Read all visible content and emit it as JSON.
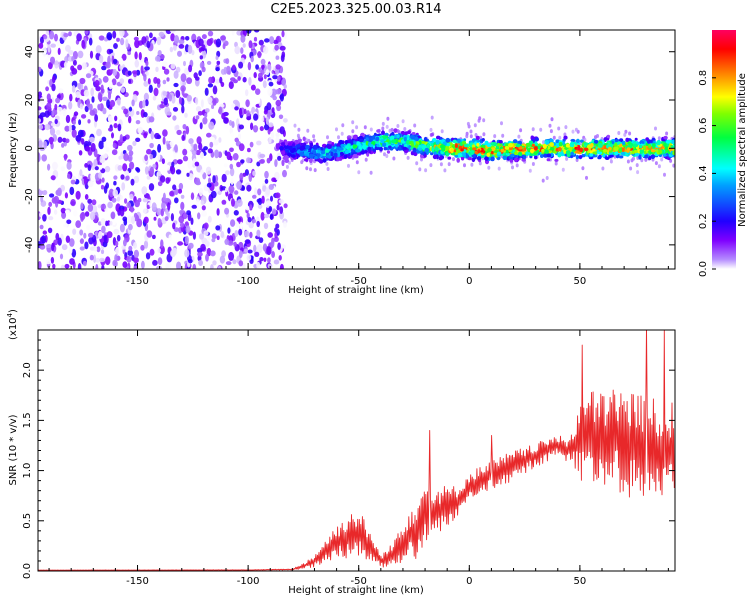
{
  "title": "C2E5.2023.325.00.03.R14",
  "chart_data": [
    {
      "type": "heatmap",
      "xlabel": "Height of straight line (km)",
      "ylabel": "Frequency (Hz)",
      "xlim": [
        -195,
        93
      ],
      "ylim": [
        -50,
        49
      ],
      "xticks": [
        -150,
        -100,
        -50,
        0,
        50
      ],
      "yticks": [
        -40,
        -20,
        0,
        20,
        40
      ],
      "noise_region_x": [
        -195,
        -83
      ],
      "signal_band": {
        "x": [
          -85,
          -80,
          -75,
          -70,
          -65,
          -60,
          -55,
          -50,
          -45,
          -40,
          -35,
          -30,
          -25,
          -20,
          -15,
          -10,
          -5,
          0,
          5,
          10,
          20,
          30,
          40,
          50,
          60,
          70,
          80,
          90
        ],
        "center_hz": [
          0,
          -1,
          -1,
          -2,
          -2,
          -1,
          0,
          1,
          2,
          3,
          3,
          3,
          2,
          1,
          0.5,
          0,
          0,
          0,
          -0.5,
          -1,
          -0.5,
          0,
          0,
          0,
          0,
          0,
          0,
          0
        ],
        "peak_amplitude": [
          0.2,
          0.3,
          0.35,
          0.4,
          0.45,
          0.45,
          0.5,
          0.55,
          0.55,
          0.6,
          0.6,
          0.6,
          0.65,
          0.7,
          0.75,
          0.85,
          0.9,
          0.9,
          0.95,
          0.95,
          0.9,
          0.9,
          0.85,
          0.9,
          0.85,
          0.85,
          0.8,
          0.8
        ]
      },
      "colorbar": {
        "label": "Normalized spectral amplitude",
        "range": [
          0,
          1
        ],
        "ticks": [
          "0.0",
          "0.2",
          "0.4",
          "0.6",
          "0.8"
        ],
        "colors": [
          "#ffffff",
          "#7f00ff",
          "#0000ff",
          "#00ffff",
          "#00ff00",
          "#ffff00",
          "#ff8000",
          "#ff0000",
          "#ff0080"
        ]
      }
    },
    {
      "type": "line",
      "xlabel": "Height of straight line (km)",
      "ylabel": "SNR (10 * v/v)",
      "y_multiplier": "(x10",
      "y_multiplier_exp": "4",
      "xlim": [
        -195,
        93
      ],
      "ylim": [
        0,
        24000
      ],
      "xticks": [
        -150,
        -100,
        -50,
        0,
        50
      ],
      "yticks": [
        0,
        5000,
        10000,
        15000,
        20000
      ],
      "ytick_labels": [
        "0.0",
        "0.5",
        "1.0",
        "1.5",
        "2.0"
      ],
      "color": "#e8282a",
      "x": [
        -195,
        -100,
        -80,
        -75,
        -70,
        -65,
        -60,
        -55,
        -50,
        -45,
        -40,
        -35,
        -30,
        -25,
        -20,
        -15,
        -10,
        -5,
        0,
        5,
        10,
        15,
        20,
        25,
        30,
        35,
        40,
        45,
        50,
        55,
        60,
        65,
        70,
        75,
        80,
        85,
        90,
        93
      ],
      "y": [
        80,
        100,
        150,
        500,
        1000,
        2000,
        2800,
        3500,
        3800,
        2500,
        1000,
        1500,
        3000,
        4000,
        5500,
        6000,
        6500,
        7000,
        8500,
        9000,
        9500,
        10000,
        10500,
        11000,
        11500,
        12000,
        12500,
        12000,
        13000,
        13500,
        13000,
        13500,
        13000,
        12500,
        12500,
        12000,
        12000,
        12500
      ],
      "noise_amplitude": [
        20,
        20,
        60,
        300,
        600,
        1200,
        1800,
        2200,
        2500,
        1500,
        600,
        1200,
        2500,
        3000,
        3500,
        2500,
        2000,
        1500,
        1200,
        1500,
        1500,
        1500,
        1500,
        1300,
        1200,
        1200,
        1000,
        1200,
        4000,
        4500,
        5000,
        5000,
        5500,
        5500,
        5000,
        5000,
        4500,
        4500
      ],
      "spikes": [
        {
          "x": -18,
          "y": 14000
        },
        {
          "x": 10,
          "y": 13500
        },
        {
          "x": 80,
          "y": 24500
        },
        {
          "x": 88,
          "y": 24000
        },
        {
          "x": 51,
          "y": 22500
        }
      ]
    }
  ]
}
